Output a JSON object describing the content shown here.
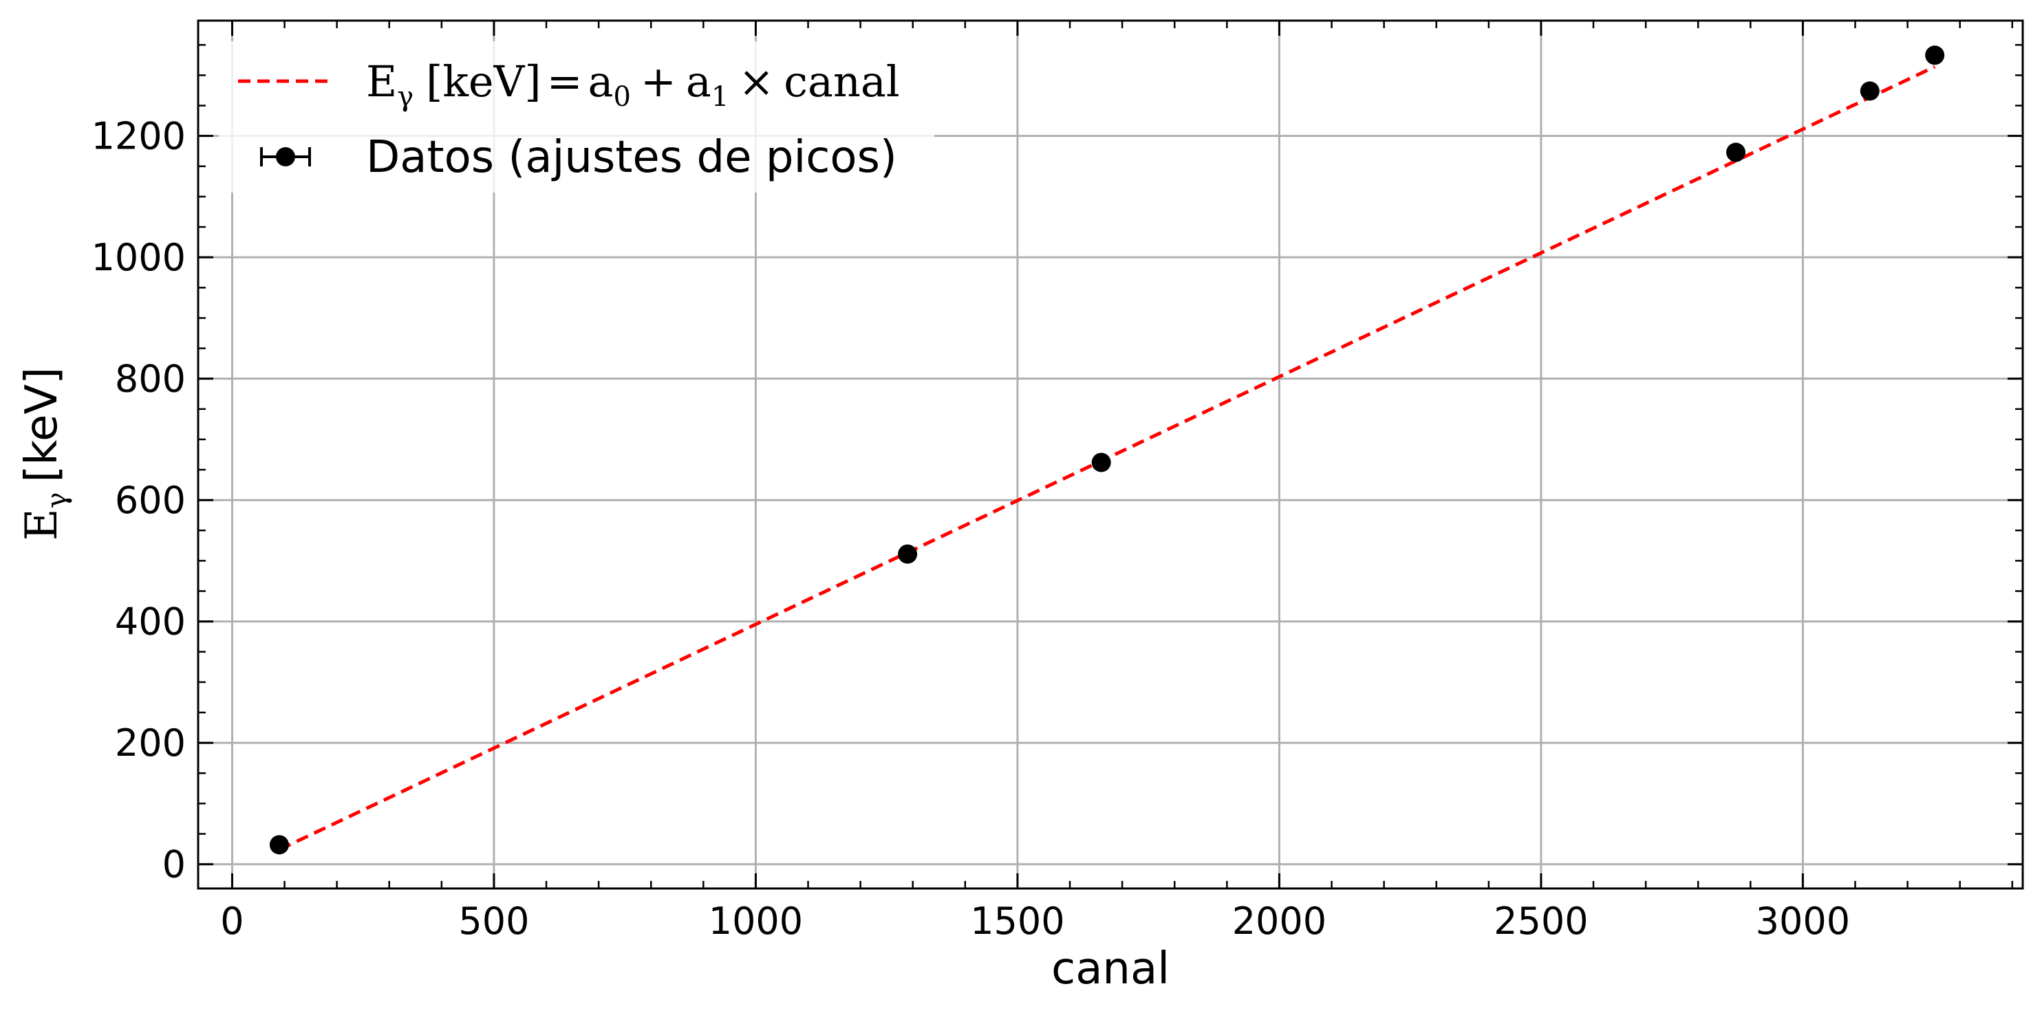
{
  "chart_data": {
    "type": "scatter",
    "xlabel": "canal",
    "ylabel": "[keV]",
    "ylabel_symbol": "E",
    "ylabel_sub": "γ",
    "xlim": [
      -65,
      3420
    ],
    "ylim": [
      -40,
      1390
    ],
    "x_ticks": [
      0,
      500,
      1000,
      1500,
      2000,
      2500,
      3000
    ],
    "y_ticks": [
      0,
      200,
      400,
      600,
      800,
      1000,
      1200
    ],
    "x_minor_step": 100,
    "y_minor_step": 50,
    "grid": true,
    "legend_position": "top-left",
    "series": [
      {
        "name": "Datos (ajustes de picos)",
        "kind": "errorbar-points",
        "color": "#000000",
        "x": [
          90,
          1290,
          1660,
          2872,
          3128,
          3252
        ],
        "y": [
          32,
          511,
          662,
          1173,
          1274,
          1333
        ]
      }
    ],
    "fit": {
      "kind": "dashed-line",
      "color": "#ff0000",
      "legend_label": {
        "lhs_symbol": "E",
        "lhs_sub": "γ",
        "lhs_unit": "[keV]",
        "eq": "=",
        "a0_symbol": "a",
        "a0_sub": "0",
        "plus": "+",
        "a1_symbol": "a",
        "a1_sub": "1",
        "times": "×",
        "var": "canal"
      },
      "x": [
        90,
        3252
      ],
      "y": [
        24,
        1314
      ]
    }
  }
}
